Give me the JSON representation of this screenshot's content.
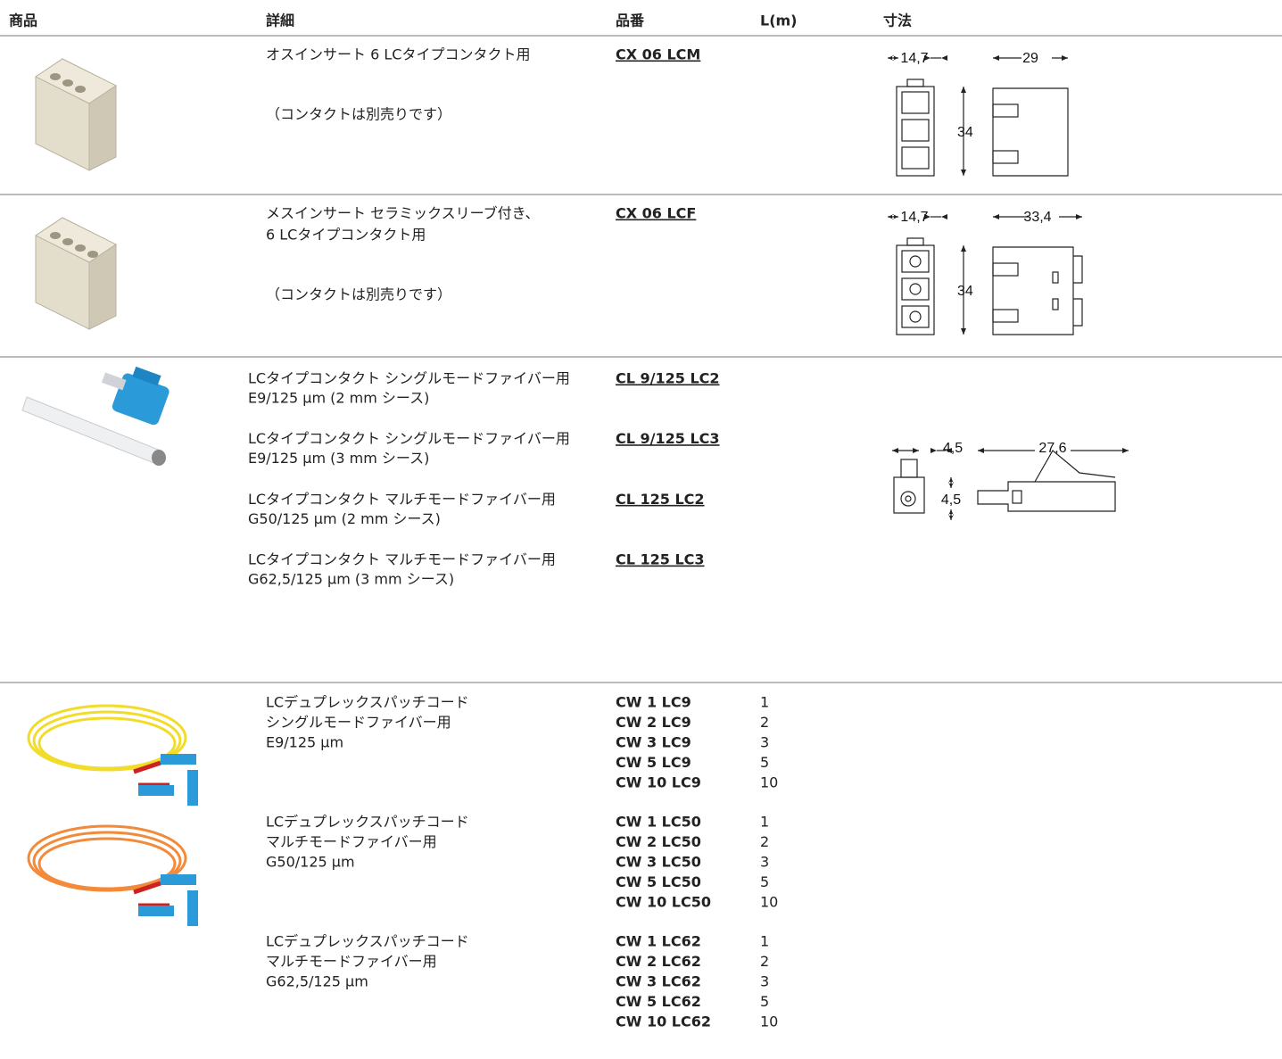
{
  "header": [
    "商品",
    "詳細",
    "品番",
    "L(m)",
    "寸法"
  ],
  "inserts": [
    {
      "detail": [
        "オスインサート 6 LCタイプコンタクト用"
      ],
      "note": "（コンタクトは別売りです）",
      "part": "CX 06 LCM",
      "dims": [
        "14,7",
        "29",
        "34"
      ]
    },
    {
      "detail": [
        "メスインサート セラミックスリーブ付き、",
        "6 LCタイプコンタクト用"
      ],
      "note": "（コンタクトは別売りです）",
      "part": "CX 06 LCF",
      "dims": [
        "14,7",
        "33,4",
        "34"
      ]
    }
  ],
  "contacts": {
    "items": [
      {
        "detail": [
          "LCタイプコンタクト シングルモードファイバー用",
          "E9/125 µm (2 mm シース)"
        ],
        "part": "CL 9/125 LC2"
      },
      {
        "detail": [
          "LCタイプコンタクト シングルモードファイバー用",
          "E9/125 µm (3 mm シース)"
        ],
        "part": "CL 9/125 LC3"
      },
      {
        "detail": [
          "LCタイプコンタクト マルチモードファイバー用",
          "G50/125 µm (2 mm シース)"
        ],
        "part": "CL 125 LC2"
      },
      {
        "detail": [
          "LCタイプコンタクト マルチモードファイバー用",
          "G62,5/125 µm (3 mm シース)"
        ],
        "part": "CL 125 LC3"
      }
    ],
    "dims": [
      "4,5",
      "27,6",
      "4,5"
    ]
  },
  "patch_cords": [
    {
      "detail": [
        "LCデュプレックスパッチコード",
        "シングルモードファイバー用",
        "E9/125 µm"
      ],
      "rows": [
        {
          "part": "CW 1 LC9",
          "length": 1
        },
        {
          "part": "CW 2 LC9",
          "length": 2
        },
        {
          "part": "CW 3 LC9",
          "length": 3
        },
        {
          "part": "CW 5 LC9",
          "length": 5
        },
        {
          "part": "CW 10 LC9",
          "length": 10
        }
      ]
    },
    {
      "detail": [
        "LCデュプレックスパッチコード",
        "マルチモードファイバー用",
        "G50/125 µm"
      ],
      "rows": [
        {
          "part": "CW 1 LC50",
          "length": 1
        },
        {
          "part": "CW 2 LC50",
          "length": 2
        },
        {
          "part": "CW 3 LC50",
          "length": 3
        },
        {
          "part": "CW 5 LC50",
          "length": 5
        },
        {
          "part": "CW 10 LC50",
          "length": 10
        }
      ]
    },
    {
      "detail": [
        "LCデュプレックスパッチコード",
        "マルチモードファイバー用",
        "G62,5/125 µm"
      ],
      "rows": [
        {
          "part": "CW 1 LC62",
          "length": 1
        },
        {
          "part": "CW 2 LC62",
          "length": 2
        },
        {
          "part": "CW 3 LC62",
          "length": 3
        },
        {
          "part": "CW 5 LC62",
          "length": 5
        },
        {
          "part": "CW 10 LC62",
          "length": 10
        }
      ]
    }
  ]
}
